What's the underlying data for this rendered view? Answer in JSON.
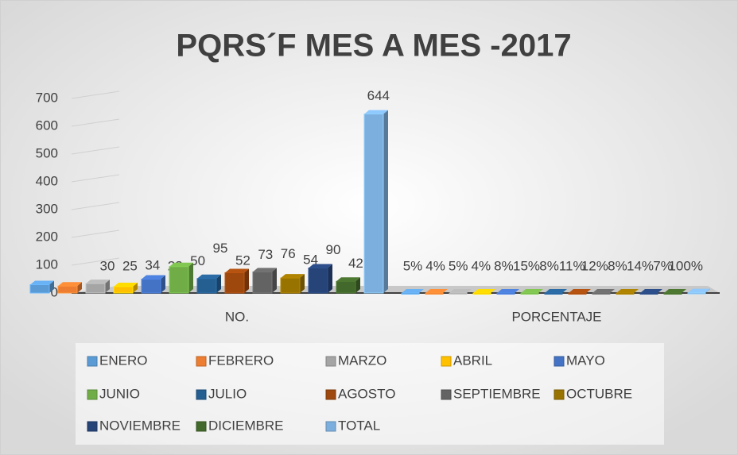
{
  "chart_data": {
    "type": "bar3d",
    "title": "PQRS´F MES A MES  -2017",
    "categories": [
      "NO.",
      "PORCENTAJE"
    ],
    "ylim": [
      0,
      700
    ],
    "yticks": [
      0,
      100,
      200,
      300,
      400,
      500,
      600,
      700
    ],
    "grid": true,
    "legend": "bottom",
    "series": [
      {
        "name": "ENERO",
        "color": "#5b9bd5",
        "values": [
          30,
          0.05
        ],
        "value_labels": [
          "30",
          "5%"
        ]
      },
      {
        "name": "FEBRERO",
        "color": "#ed7d31",
        "values": [
          25,
          0.04
        ],
        "value_labels": [
          "25",
          "4%"
        ]
      },
      {
        "name": "MARZO",
        "color": "#a5a5a5",
        "values": [
          34,
          0.05
        ],
        "value_labels": [
          "34",
          "5%"
        ]
      },
      {
        "name": "ABRIL",
        "color": "#ffc000",
        "values": [
          23,
          0.04
        ],
        "value_labels": [
          "23",
          "4%"
        ]
      },
      {
        "name": "MAYO",
        "color": "#4472c4",
        "values": [
          50,
          0.08
        ],
        "value_labels": [
          "50",
          "8%"
        ]
      },
      {
        "name": "JUNIO",
        "color": "#70ad47",
        "values": [
          95,
          0.15
        ],
        "value_labels": [
          "95",
          "15%"
        ]
      },
      {
        "name": "JULIO",
        "color": "#255e91",
        "values": [
          52,
          0.08
        ],
        "value_labels": [
          "52",
          "8%"
        ]
      },
      {
        "name": "AGOSTO",
        "color": "#9e480e",
        "values": [
          73,
          0.11
        ],
        "value_labels": [
          "73",
          "11%"
        ]
      },
      {
        "name": "SEPTIEMBRE",
        "color": "#636363",
        "values": [
          76,
          0.12
        ],
        "value_labels": [
          "76",
          "12%"
        ]
      },
      {
        "name": "OCTUBRE",
        "color": "#997300",
        "values": [
          54,
          0.08
        ],
        "value_labels": [
          "54",
          "8%"
        ]
      },
      {
        "name": "NOVIEMBRE",
        "color": "#264478",
        "values": [
          90,
          0.14
        ],
        "value_labels": [
          "90",
          "14%"
        ]
      },
      {
        "name": "DICIEMBRE",
        "color": "#43682b",
        "values": [
          42,
          0.07
        ],
        "value_labels": [
          "42",
          "7%"
        ]
      },
      {
        "name": "TOTAL",
        "color": "#7cafdd",
        "values": [
          644,
          1
        ],
        "value_labels": [
          "644",
          "100%"
        ]
      }
    ]
  }
}
